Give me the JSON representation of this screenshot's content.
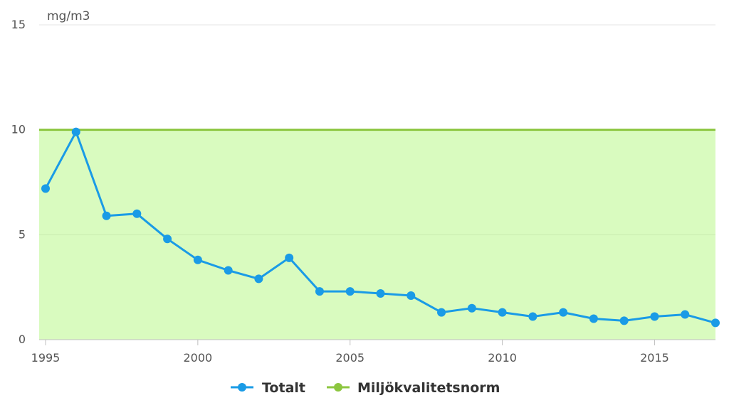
{
  "chart_data": {
    "type": "line",
    "title": "",
    "unit_label": "mg/m3",
    "xlabel": "",
    "ylabel": "",
    "xlim": [
      1995,
      2017
    ],
    "ylim": [
      0,
      15
    ],
    "x_ticks": [
      "1995",
      "2000",
      "2005",
      "2010",
      "2015"
    ],
    "y_ticks": [
      "0",
      "5",
      "10",
      "15"
    ],
    "grid": "horizontal",
    "legend_position": "bottom-center",
    "x": [
      1995,
      1996,
      1997,
      1998,
      1999,
      2000,
      2001,
      2002,
      2003,
      2004,
      2005,
      2006,
      2007,
      2008,
      2009,
      2010,
      2011,
      2012,
      2013,
      2014,
      2015,
      2016,
      2017
    ],
    "series": [
      {
        "name": "Totalt",
        "color": "#1a9be6",
        "values": [
          7.2,
          9.9,
          5.9,
          6.0,
          4.8,
          3.8,
          3.3,
          2.9,
          3.9,
          2.3,
          2.3,
          2.2,
          2.1,
          1.3,
          1.5,
          1.3,
          1.1,
          1.3,
          1.0,
          0.9,
          1.1,
          1.2,
          0.8
        ]
      },
      {
        "name": "Miljökvalitetsnorm",
        "color": "#8cc63f",
        "value": 10,
        "fill_color": "#d9fbbf"
      }
    ]
  }
}
